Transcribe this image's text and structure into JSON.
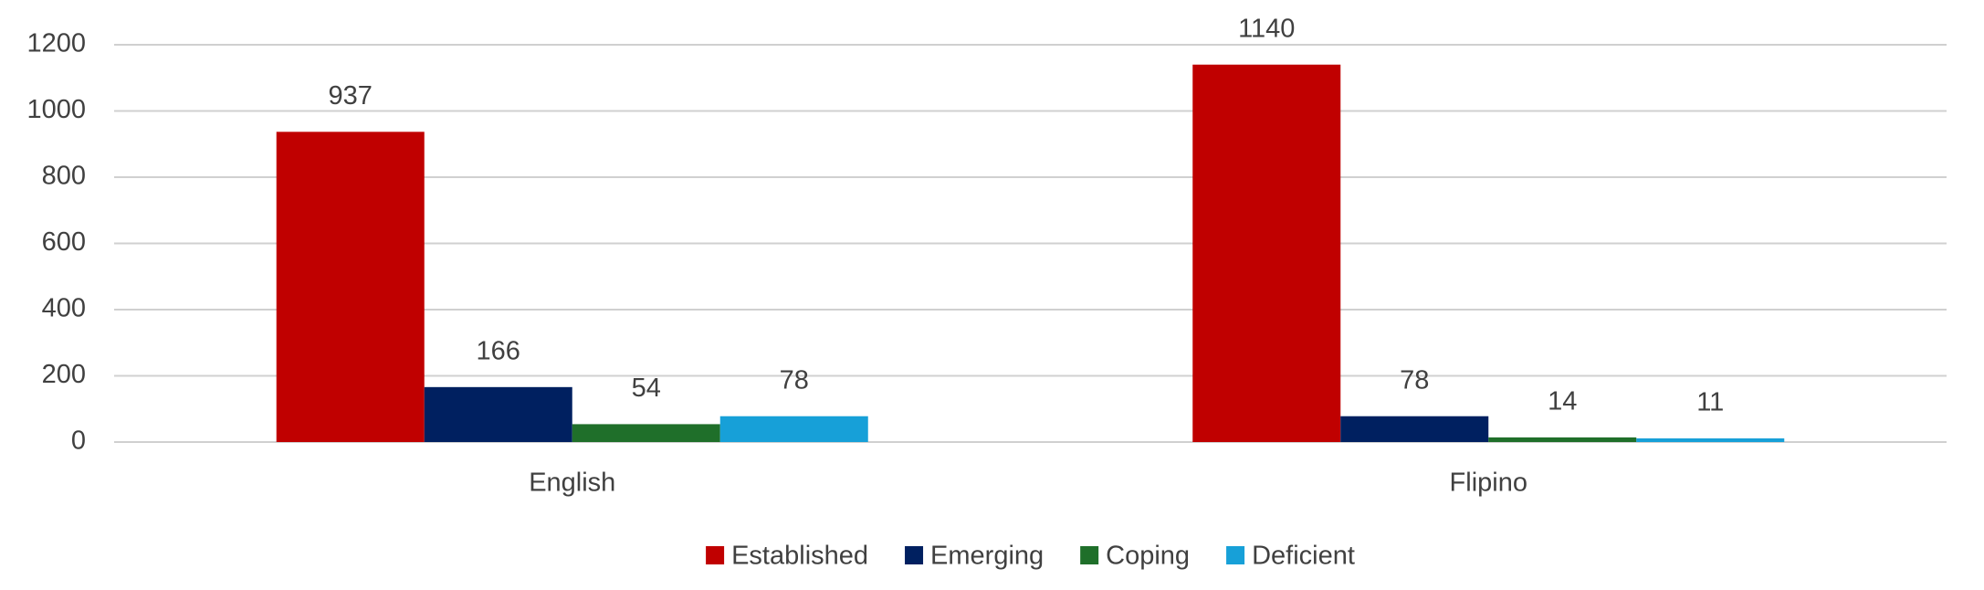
{
  "chart_data": {
    "type": "bar",
    "categories": [
      "English",
      "Flipino"
    ],
    "series": [
      {
        "name": "Established",
        "color": "#c00000",
        "values": [
          937,
          1140
        ]
      },
      {
        "name": "Emerging",
        "color": "#002060",
        "values": [
          166,
          78
        ]
      },
      {
        "name": "Coping",
        "color": "#1f6f2a",
        "values": [
          54,
          14
        ]
      },
      {
        "name": "Deficient",
        "color": "#17a0d8",
        "values": [
          78,
          11
        ]
      }
    ],
    "ylim": [
      0,
      1200
    ],
    "yticks": [
      0,
      200,
      400,
      600,
      800,
      1000,
      1200
    ],
    "grid": true,
    "legend": "bottom"
  }
}
